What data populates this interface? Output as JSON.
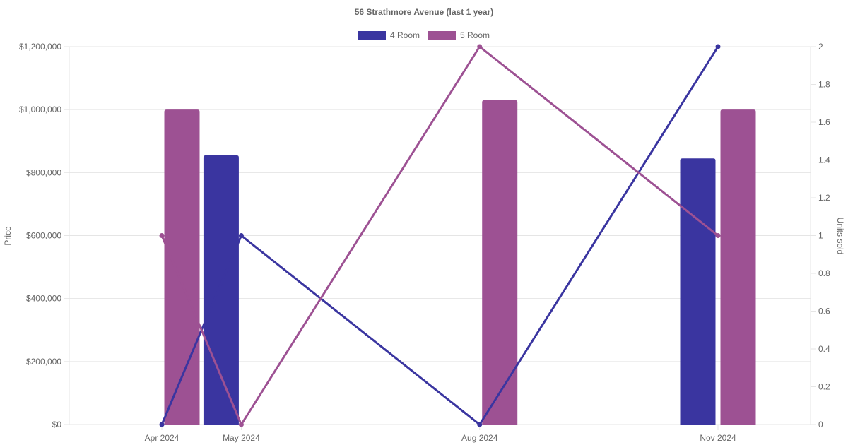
{
  "chart_data": {
    "type": "bar",
    "title": "56 Strathmore Avenue (last 1 year)",
    "categories": [
      "Apr 2024",
      "May 2024",
      "Aug 2024",
      "Nov 2024"
    ],
    "y_left": {
      "label": "Price",
      "min": 0,
      "max": 1200000,
      "step": 200000,
      "ticks": [
        "$0",
        "$200,000",
        "$400,000",
        "$600,000",
        "$800,000",
        "$1,000,000",
        "$1,200,000"
      ]
    },
    "y_right": {
      "label": "Units sold",
      "min": 0,
      "max": 2,
      "step": 0.2,
      "ticks": [
        "0",
        "0.2",
        "0.4",
        "0.6",
        "0.8",
        "1",
        "1.2",
        "1.4",
        "1.6",
        "1.8",
        "2"
      ]
    },
    "legend": {
      "position": "top-center",
      "entries": [
        "4 Room",
        "5 Room"
      ]
    },
    "grid": true,
    "series": [
      {
        "name": "4 Room",
        "color": "#3a35a0",
        "bar_values": [
          null,
          855000,
          null,
          845000
        ],
        "line_values": [
          0,
          1,
          0,
          2
        ]
      },
      {
        "name": "5 Room",
        "color": "#9d5193",
        "bar_values": [
          1000000,
          null,
          1030000,
          1000000
        ],
        "line_values": [
          1,
          0,
          2,
          1
        ]
      }
    ]
  }
}
